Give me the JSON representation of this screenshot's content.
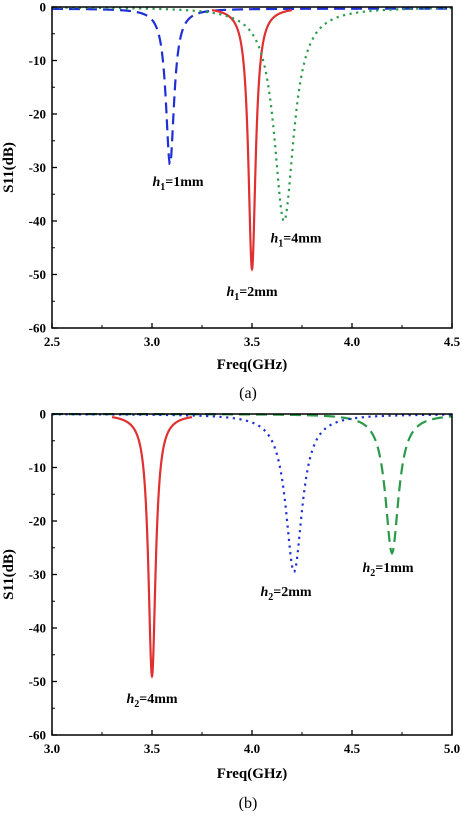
{
  "chart_data": [
    {
      "type": "line",
      "xlabel": "Freq(GHz)",
      "ylabel": "S11(dB)",
      "caption": "(a)",
      "xlim": [
        2.5,
        4.5
      ],
      "ylim": [
        -60,
        0
      ],
      "xticks": [
        2.5,
        3.0,
        3.5,
        4.0,
        4.5
      ],
      "xtick_labels": [
        "2.5",
        "3.0",
        "3.5",
        "4.0",
        "4.5"
      ],
      "yticks": [
        0,
        -10,
        -20,
        -30,
        -40,
        -50,
        -60
      ],
      "ytick_labels": [
        "0",
        "-10",
        "-20",
        "-30",
        "-40",
        "-50",
        "-60"
      ],
      "grid": false,
      "series": [
        {
          "name": "h1=1mm",
          "var": "h",
          "sub": "1",
          "val": "=1mm",
          "color": "#1f2fd6",
          "style": "dashed",
          "f0": 3.09,
          "depth": -29.5,
          "width": 0.025,
          "x_range": [
            2.5,
            4.5
          ],
          "baseline": -0.3,
          "label_x": 3.13,
          "label_y": -33.5
        },
        {
          "name": "h1=2mm",
          "var": "h",
          "sub": "1",
          "val": "=2mm",
          "color": "#e03030",
          "style": "solid",
          "f0": 3.5,
          "depth": -49.0,
          "width": 0.022,
          "x_range": [
            3.3,
            3.7
          ],
          "baseline": 0,
          "label_x": 3.5,
          "label_y": -54.0
        },
        {
          "name": "h1=4mm",
          "var": "h",
          "sub": "1",
          "val": "=4mm",
          "color": "#2a9a4a",
          "style": "dotted",
          "f0": 3.66,
          "depth": -40.0,
          "width": 0.06,
          "x_range": [
            2.5,
            4.5
          ],
          "baseline": 0,
          "label_x": 3.72,
          "label_y": -44.0
        }
      ]
    },
    {
      "type": "line",
      "xlabel": "Freq(GHz)",
      "ylabel": "S11(dB)",
      "caption": "(b)",
      "xlim": [
        3.0,
        5.0
      ],
      "ylim": [
        -60,
        0
      ],
      "xticks": [
        3.0,
        3.5,
        4.0,
        4.5,
        5.0
      ],
      "xtick_labels": [
        "3.0",
        "3.5",
        "4.0",
        "4.5",
        "5.0"
      ],
      "yticks": [
        0,
        -10,
        -20,
        -30,
        -40,
        -50,
        -60
      ],
      "ytick_labels": [
        "0",
        "-10",
        "-20",
        "-30",
        "-40",
        "-50",
        "-60"
      ],
      "grid": false,
      "series": [
        {
          "name": "h2=1mm",
          "var": "h",
          "sub": "2",
          "val": "=1mm",
          "color": "#2a9a4a",
          "style": "dashed",
          "f0": 4.7,
          "depth": -26.0,
          "width": 0.04,
          "x_range": [
            3.0,
            5.0
          ],
          "baseline": 0,
          "label_x": 4.68,
          "label_y": -29.5
        },
        {
          "name": "h2=2mm",
          "var": "h",
          "sub": "2",
          "val": "=2mm",
          "color": "#1f2fd6",
          "style": "dotted",
          "f0": 4.21,
          "depth": -29.5,
          "width": 0.05,
          "x_range": [
            3.0,
            5.0
          ],
          "baseline": 0,
          "label_x": 4.17,
          "label_y": -34.0
        },
        {
          "name": "h2=4mm",
          "var": "h",
          "sub": "2",
          "val": "=4mm",
          "color": "#e03030",
          "style": "solid",
          "f0": 3.5,
          "depth": -49.0,
          "width": 0.022,
          "x_range": [
            3.3,
            3.7
          ],
          "baseline": 0,
          "label_x": 3.5,
          "label_y": -54.0
        }
      ]
    }
  ]
}
